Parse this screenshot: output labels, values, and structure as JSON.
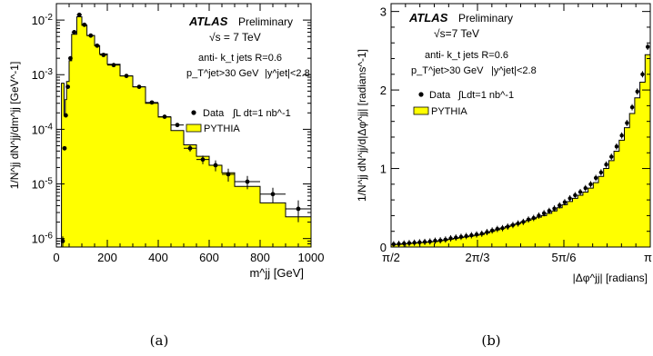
{
  "captions": [
    "(a)",
    "(b)"
  ],
  "chart_data": [
    {
      "type": "bar",
      "panel": "(a)",
      "title": "",
      "xlabel": "m^jj [GeV]",
      "ylabel": "1/N^jj dN^jj/dm^jj [GeV^-1]",
      "xlim": [
        0,
        1000
      ],
      "ylim": [
        7e-07,
        0.02
      ],
      "yscale": "log",
      "xticks": [
        "0",
        "200",
        "400",
        "600",
        "800",
        "1000"
      ],
      "yticks": [
        "10^-6",
        "10^-5",
        "10^-4",
        "10^-3",
        "10^-2"
      ],
      "label_atlas": "ATLAS",
      "label_preliminary": "Preliminary",
      "label_sqrts": "√s = 7 TeV",
      "label_jets": "anti- k_t jets R=0.6",
      "label_pt": "p_T^jet>30 GeV",
      "label_y": "|y^jet|<2.8",
      "legend_data": "Data",
      "legend_lumi": "∫L dt=1 nb^-1",
      "legend_mc": "PYTHIA",
      "legend_position": "top-right",
      "fill_color": "#ffff00",
      "mc_bin_edges": [
        20,
        30,
        35,
        40,
        50,
        60,
        80,
        100,
        120,
        150,
        170,
        200,
        250,
        300,
        350,
        400,
        450,
        500,
        550,
        600,
        650,
        700,
        800,
        900,
        1000
      ],
      "mc_values": [
        0.0007,
        0.00018,
        0.00035,
        0.00075,
        0.0018,
        0.0055,
        0.0115,
        0.008,
        0.0052,
        0.0034,
        0.0024,
        0.00155,
        0.00095,
        0.0006,
        0.0003,
        0.000168,
        9.5e-05,
        5.2e-05,
        3.2e-05,
        2.2e-05,
        1.6e-05,
        9e-06,
        4.5e-06,
        2.5e-06
      ],
      "data_points": {
        "x": [
          25,
          32,
          37,
          45,
          55,
          70,
          90,
          110,
          135,
          160,
          185,
          225,
          275,
          325,
          375,
          425,
          475,
          525,
          575,
          625,
          675,
          750,
          850,
          950
        ],
        "y": [
          9e-07,
          4.5e-05,
          0.00018,
          0.0006,
          0.002,
          0.006,
          0.0125,
          0.0082,
          0.0052,
          0.0034,
          0.0023,
          0.0015,
          0.00095,
          0.0006,
          0.00031,
          0.00017,
          0.00012,
          4.5e-05,
          2.8e-05,
          2.2e-05,
          1.5e-05,
          1.1e-05,
          6.5e-06,
          3.5e-06
        ],
        "x_err": [
          5,
          2.5,
          2.5,
          5,
          5,
          10,
          10,
          10,
          15,
          10,
          15,
          25,
          25,
          25,
          25,
          25,
          25,
          25,
          25,
          25,
          25,
          50,
          50,
          50
        ],
        "y_err": [
          2e-07,
          4e-06,
          1e-05,
          3e-05,
          6e-05,
          0.00013,
          0.0002,
          0.00015,
          0.0001,
          7e-05,
          6e-05,
          4e-05,
          3e-05,
          2e-05,
          1.5e-05,
          1e-05,
          9e-06,
          6e-06,
          5e-06,
          5e-06,
          4e-06,
          3e-06,
          2e-06,
          1.5e-06
        ]
      }
    },
    {
      "type": "bar",
      "panel": "(b)",
      "title": "",
      "xlabel": "|Δφ^jj| [radians]",
      "ylabel": "1/N^jj dN^jj/d|Δφ^jj| [radians^-1]",
      "xlim": [
        1.5708,
        3.14159
      ],
      "ylim": [
        0,
        3.1
      ],
      "xticks": [
        "π/2",
        "2π/3",
        "5π/6",
        "π"
      ],
      "yticks": [
        "0",
        "1",
        "2",
        "3"
      ],
      "label_atlas": "ATLAS",
      "label_preliminary": "Preliminary",
      "label_sqrts": "√s=7 TeV",
      "label_jets": "anti- k_t jets R=0.6",
      "label_pt": "p_T^jet>30 GeV",
      "label_y": "|y^jet|<2.8",
      "legend_data": "Data",
      "legend_lumi": "∫Ldt=1 nb^-1",
      "legend_mc": "PYTHIA",
      "legend_position": "top-left",
      "fill_color": "#ffff00",
      "bins": 50,
      "mc_values": [
        0.03,
        0.035,
        0.04,
        0.045,
        0.05,
        0.055,
        0.06,
        0.065,
        0.07,
        0.08,
        0.09,
        0.1,
        0.11,
        0.12,
        0.13,
        0.14,
        0.15,
        0.16,
        0.18,
        0.2,
        0.22,
        0.24,
        0.26,
        0.28,
        0.3,
        0.32,
        0.34,
        0.36,
        0.38,
        0.4,
        0.43,
        0.46,
        0.5,
        0.54,
        0.58,
        0.62,
        0.66,
        0.7,
        0.75,
        0.82,
        0.9,
        1.0,
        1.1,
        1.22,
        1.36,
        1.52,
        1.7,
        1.9,
        2.1,
        2.45
      ],
      "data_values": [
        0.035,
        0.04,
        0.045,
        0.05,
        0.055,
        0.06,
        0.065,
        0.07,
        0.08,
        0.085,
        0.095,
        0.11,
        0.12,
        0.13,
        0.14,
        0.15,
        0.16,
        0.17,
        0.19,
        0.21,
        0.23,
        0.24,
        0.26,
        0.28,
        0.3,
        0.32,
        0.35,
        0.37,
        0.4,
        0.43,
        0.46,
        0.49,
        0.53,
        0.57,
        0.62,
        0.66,
        0.7,
        0.75,
        0.8,
        0.88,
        0.95,
        1.05,
        1.15,
        1.28,
        1.42,
        1.58,
        1.78,
        1.98,
        2.2,
        2.55
      ],
      "data_err": 0.04
    }
  ]
}
